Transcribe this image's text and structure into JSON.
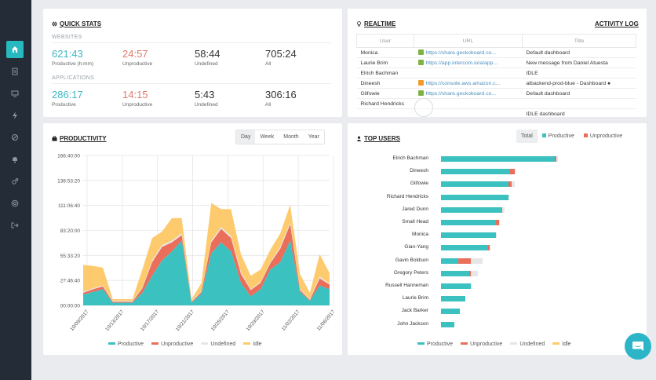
{
  "quick_stats": {
    "title": "QUICK STATS",
    "websites_label": "WEBSITES",
    "applications_label": "APPLICATIONS",
    "websites": [
      {
        "value": "621:43",
        "label": "Productive (h:mm)",
        "tone": "prod"
      },
      {
        "value": "24:57",
        "label": "Unproductive",
        "tone": "unprod"
      },
      {
        "value": "58:44",
        "label": "Undefined",
        "tone": "dark"
      },
      {
        "value": "705:24",
        "label": "All",
        "tone": "dark"
      }
    ],
    "applications": [
      {
        "value": "286:17",
        "label": "Productive",
        "tone": "prod"
      },
      {
        "value": "14:15",
        "label": "Unproductive",
        "tone": "unprod"
      },
      {
        "value": "5:43",
        "label": "Undefined",
        "tone": "dark"
      },
      {
        "value": "306:16",
        "label": "All",
        "tone": "dark"
      }
    ]
  },
  "realtime": {
    "title": "REALTIME",
    "activity_log": "ACTIVITY LOG",
    "columns": [
      "User",
      "URL",
      "Title"
    ],
    "rows": [
      {
        "user": "Monica",
        "url": "https://share.geckoboard.co...",
        "title": "Default dashboard",
        "icon": "gecko"
      },
      {
        "user": "Laurie Brim",
        "url": "https://app.intercom.io/a/app...",
        "title": "New message from Daniel Atuesta",
        "icon": "intercom"
      },
      {
        "user": "Elrich Bachman",
        "url": "",
        "title": "IDLE",
        "icon": ""
      },
      {
        "user": "Dineesh",
        "url": "https://console.aws.amazon.c...",
        "title": "atbackend-prod-blue - Dashboard",
        "icon": "aws"
      },
      {
        "user": "Gilfowie",
        "url": "https://share.geckoboard.co...",
        "title": "Default dashboard",
        "icon": "gecko"
      },
      {
        "user": "Richard Hendricks",
        "url": "",
        "title": "",
        "icon": ""
      }
    ],
    "partial_row_title": "IDLE dashboard"
  },
  "productivity": {
    "title": "PRODUCTIVITY",
    "ranges": [
      "Day",
      "Week",
      "Month",
      "Year"
    ],
    "selected_range": "Day",
    "legend": [
      "Productive",
      "Unproductive",
      "Undefined",
      "Idle"
    ]
  },
  "top_users": {
    "title": "TOP USERS",
    "filters": [
      "Total",
      "Productive",
      "Unproductive"
    ],
    "selected_filter": "Total",
    "legend": [
      "Productive",
      "Unproductive",
      "Undefined",
      "Idle"
    ]
  },
  "colors": {
    "productive": "#3cc1c1",
    "unproductive": "#ea6e5a",
    "undefined": "#e6e6e6",
    "idle": "#fdcb6e",
    "accent": "#27b8c0"
  },
  "chart_data": [
    {
      "type": "area",
      "stacked": true,
      "title": "PRODUCTIVITY",
      "y_unit": "hh:mm:ss",
      "ylim_hours": [
        0,
        166.67
      ],
      "y_ticks": [
        "00:00:00",
        "27:46:40",
        "55:33:20",
        "83:20:00",
        "111:06:40",
        "138:53:20",
        "166:40:00"
      ],
      "x_ticks": [
        "10/09/2017",
        "10/13/2017",
        "10/17/2017",
        "10/21/2017",
        "10/25/2017",
        "10/29/2017",
        "11/02/2017",
        "11/06/2017"
      ],
      "series": [
        {
          "name": "Productive",
          "values": [
            12,
            15,
            18,
            3,
            3,
            3,
            14,
            33,
            50,
            60,
            72,
            3,
            13,
            58,
            70,
            60,
            25,
            10,
            18,
            40,
            48,
            72,
            15,
            5,
            22,
            18
          ]
        },
        {
          "name": "Unproductive",
          "values": [
            2,
            3,
            3,
            1,
            1,
            1,
            5,
            15,
            15,
            10,
            6,
            1,
            2,
            12,
            15,
            15,
            10,
            7,
            7,
            7,
            15,
            18,
            2,
            1,
            8,
            5
          ]
        },
        {
          "name": "Undefined",
          "values": [
            1,
            1,
            1,
            1,
            1,
            1,
            1,
            2,
            2,
            2,
            2,
            1,
            1,
            2,
            2,
            2,
            2,
            1,
            1,
            1,
            2,
            2,
            1,
            1,
            2,
            1
          ]
        },
        {
          "name": "Idle",
          "values": [
            30,
            25,
            20,
            2,
            2,
            2,
            20,
            25,
            15,
            25,
            17,
            2,
            9,
            42,
            20,
            30,
            20,
            15,
            14,
            14,
            15,
            20,
            17,
            7,
            25,
            12
          ]
        }
      ],
      "legend": [
        "Productive",
        "Unproductive",
        "Undefined",
        "Idle"
      ]
    },
    {
      "type": "bar",
      "orientation": "horizontal",
      "stacked": true,
      "title": "TOP USERS",
      "categories": [
        "Elrich Bachman",
        "Dineesh",
        "Gilfowie",
        "Richard Hendricks",
        "Jared Dunn",
        "Small Head",
        "Monica",
        "Gian-Yang",
        "Gavin Boldson",
        "Gregory Peters",
        "Russell Hanneman",
        "Laurie Brim",
        "Jack Barker",
        "John Jackson"
      ],
      "series": [
        {
          "name": "Productive",
          "values": [
            145,
            88,
            86,
            86,
            77,
            70,
            70,
            60,
            22,
            36,
            38,
            31,
            24,
            17
          ]
        },
        {
          "name": "Unproductive",
          "values": [
            2,
            6,
            4,
            0,
            1,
            4,
            0,
            2,
            16,
            2,
            0,
            0,
            0,
            0
          ]
        },
        {
          "name": "Undefined",
          "values": [
            2,
            1,
            4,
            1,
            3,
            1,
            1,
            1,
            15,
            9,
            1,
            0,
            0,
            0
          ]
        },
        {
          "name": "Idle",
          "values": [
            0,
            0,
            0,
            0,
            0,
            0,
            0,
            0,
            0,
            0,
            0,
            0,
            0,
            0
          ]
        }
      ],
      "legend": [
        "Productive",
        "Unproductive",
        "Undefined",
        "Idle"
      ]
    }
  ]
}
